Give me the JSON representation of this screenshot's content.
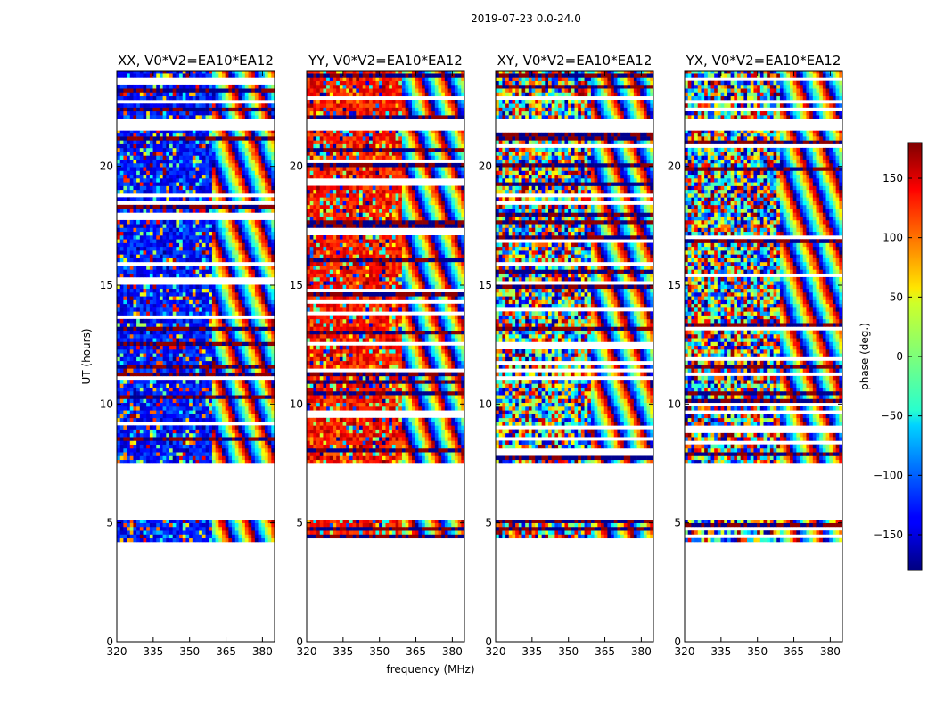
{
  "suptitle": "2019-07-23 0.0-24.0",
  "chart_data": {
    "type": "heatmap",
    "xlabel": "frequency (MHz)",
    "ylabel": "UT (hours)",
    "xlim": [
      320,
      385
    ],
    "ylim": [
      0,
      24
    ],
    "x_ticks": [
      320,
      335,
      350,
      365,
      380
    ],
    "y_ticks": [
      0,
      5,
      10,
      15,
      20
    ],
    "colorbar": {
      "label": "phase (deg.)",
      "range": [
        -180,
        180
      ],
      "ticks": [
        150,
        100,
        50,
        0,
        -50,
        -100,
        -150
      ],
      "tick_labels": [
        "150",
        "100",
        "50",
        "0",
        "−50",
        "−100",
        "−150"
      ],
      "colormap": "jet"
    },
    "data_ut_ranges_hours": [
      [
        4.2,
        5.1
      ],
      [
        7.5,
        21.5
      ],
      [
        22.0,
        24.0
      ]
    ],
    "panels": [
      {
        "title": "XX, V0*V2=EA10*EA12",
        "pol": "XX",
        "dominant_phase_deg": -130
      },
      {
        "title": "YY, V0*V2=EA10*EA12",
        "pol": "YY",
        "dominant_phase_deg": 130
      },
      {
        "title": "XY, V0*V2=EA10*EA12",
        "pol": "XY",
        "dominant_phase_deg": null
      },
      {
        "title": "YX, V0*V2=EA10*EA12",
        "pol": "YX",
        "dominant_phase_deg": null
      }
    ]
  }
}
